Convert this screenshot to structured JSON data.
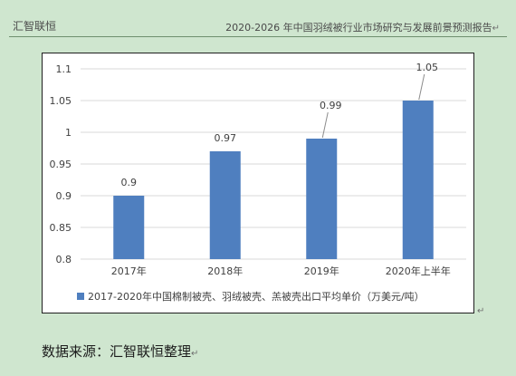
{
  "header": {
    "left": "汇智联恒",
    "right": "2020-2026 年中国羽绒被行业市场研究与发展前景预测报告",
    "paragraph_mark": "↵"
  },
  "chart_data": {
    "type": "bar",
    "categories": [
      "2017年",
      "2018年",
      "2019年",
      "2020年上半年"
    ],
    "series": [
      {
        "name": "2017-2020年中国棉制被壳、羽绒被壳、羔被壳出口平均单价（万美元/吨）",
        "values": [
          0.9,
          0.97,
          0.99,
          1.05
        ]
      }
    ],
    "data_labels": [
      "0.9",
      "0.97",
      "0.99",
      "1.05"
    ],
    "ylim": [
      0.8,
      1.1
    ],
    "yticks": [
      "0.8",
      "0.85",
      "0.9",
      "0.95",
      "1",
      "1.05",
      "1.1"
    ],
    "grid": true,
    "legend_position": "bottom",
    "bar_color": "#4f7fbf",
    "grid_color": "#d9d9d9"
  },
  "source_line": "数据来源：汇智联恒整理"
}
